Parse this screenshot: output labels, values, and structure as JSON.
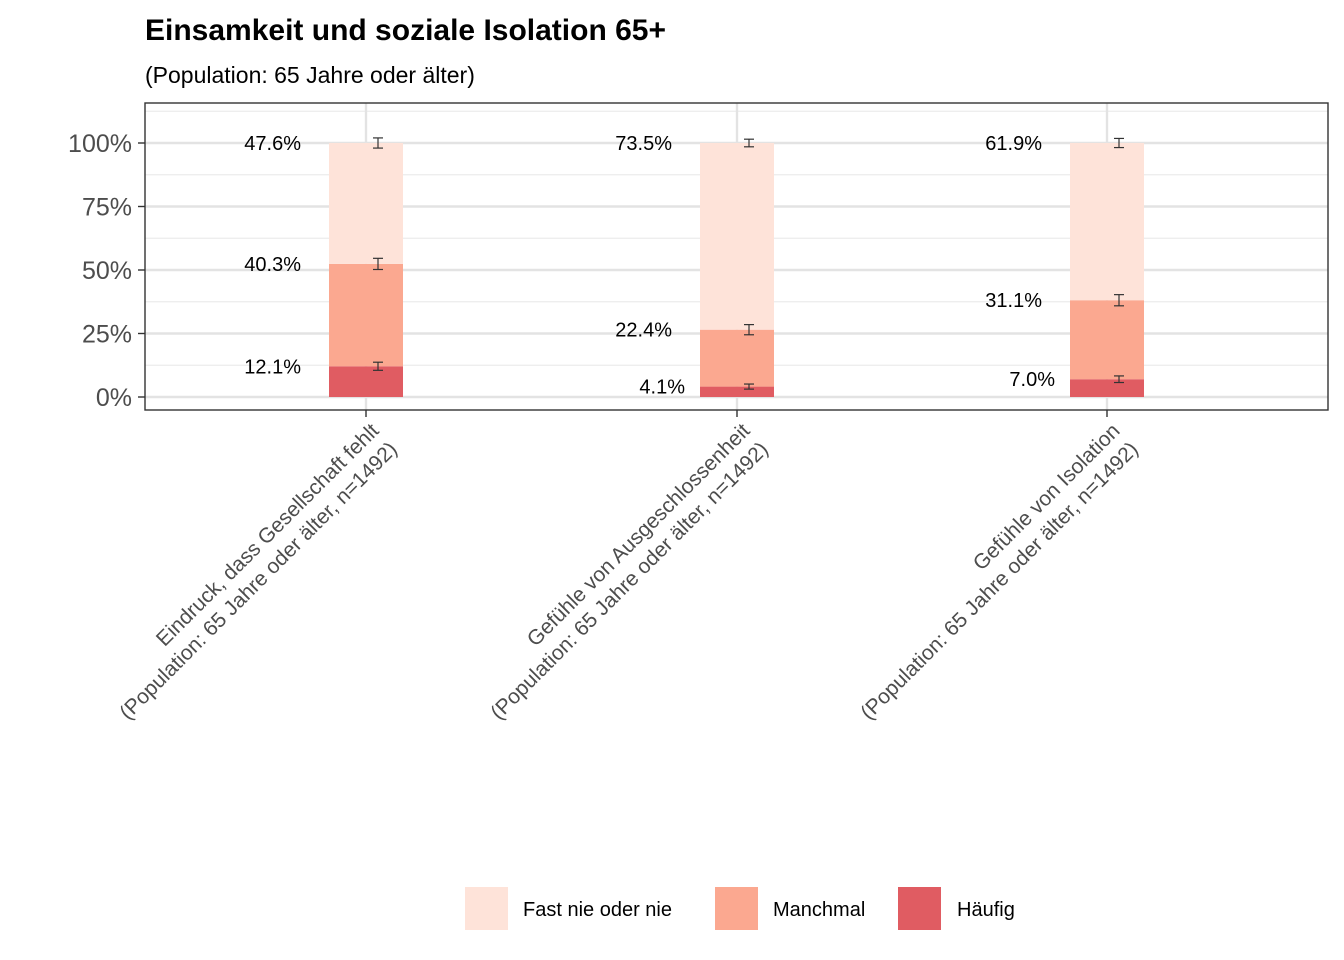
{
  "chart_data": {
    "type": "bar",
    "stacked": true,
    "title": "Einsamkeit und soziale Isolation 65+",
    "subtitle": "(Population: 65 Jahre oder älter)",
    "categories": [
      [
        "Eindruck, dass Gesellschaft fehlt",
        "(Population: 65 Jahre oder älter, n=1492)"
      ],
      [
        "Gefühle von Ausgeschlossenheit",
        "(Population: 65 Jahre oder älter, n=1492)"
      ],
      [
        "Gefühle von Isolation",
        "(Population: 65 Jahre oder älter, n=1492)"
      ]
    ],
    "series": [
      {
        "name": "Häufig",
        "color": "#e05c62",
        "values": [
          12.1,
          4.1,
          7.0
        ],
        "labels": [
          "12.1%",
          "4.1%",
          "7.0%"
        ],
        "error": [
          1.6,
          1.0,
          1.3
        ]
      },
      {
        "name": "Manchmal",
        "color": "#fba890",
        "values": [
          40.3,
          22.4,
          31.1
        ],
        "labels": [
          "40.3%",
          "22.4%",
          "31.1%"
        ],
        "error": [
          2.2,
          2.0,
          2.2
        ]
      },
      {
        "name": "Fast nie oder nie",
        "color": "#fee3d9",
        "values": [
          47.6,
          73.5,
          61.9
        ],
        "labels": [
          "47.6%",
          "73.5%",
          "61.9%"
        ],
        "error": [
          2.0,
          1.5,
          1.8
        ]
      }
    ],
    "legend_order": [
      "Fast nie oder nie",
      "Manchmal",
      "Häufig"
    ],
    "yticks": [
      "0%",
      "25%",
      "50%",
      "75%",
      "100%"
    ],
    "ylim": [
      -5,
      113
    ],
    "grid": true,
    "legend_position": "bottom"
  }
}
